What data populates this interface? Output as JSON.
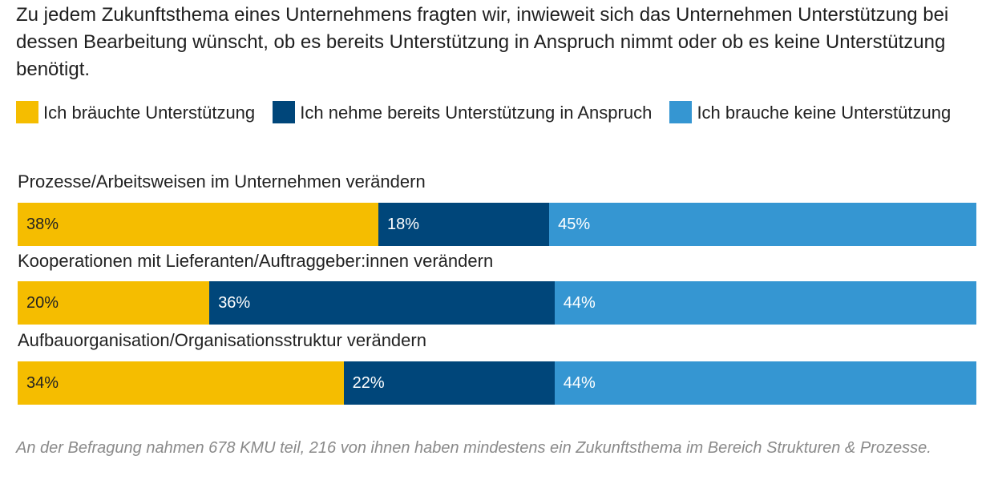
{
  "chart_data": {
    "type": "bar",
    "orientation": "horizontal",
    "stacked": true,
    "title": "Zu jedem Zukunftsthema eines Unternehmens fragten wir, inwieweit sich das Unternehmen Unterstützung bei dessen Bearbeitung wünscht, ob es bereits Unterstützung in Anspruch nimmt oder ob es keine Unterstützung benötigt.",
    "categories": [
      "Prozesse/Arbeitsweisen im Unternehmen verändern",
      "Kooperationen mit Lieferanten/Auftraggeber:innen verändern",
      "Aufbauorganisation/Organisationsstruktur verändern"
    ],
    "series": [
      {
        "name": "Ich bräuchte Unterstützung",
        "color": "#f5bd00",
        "text_color": "#222222",
        "values": [
          38,
          20,
          34
        ]
      },
      {
        "name": "Ich nehme bereits Unterstützung in Anspruch",
        "color": "#00467a",
        "text_color": "#ffffff",
        "values": [
          18,
          36,
          22
        ]
      },
      {
        "name": "Ich brauche keine Unterstützung",
        "color": "#3596d2",
        "text_color": "#ffffff",
        "values": [
          45,
          44,
          44
        ]
      }
    ],
    "value_suffix": "%",
    "xlim": [
      0,
      101
    ],
    "legend_position": "top",
    "footnote": "An der Befragung nahmen 678 KMU teil, 216 von ihnen haben mindestens ein Zukunftsthema im Bereich Strukturen & Prozesse."
  }
}
